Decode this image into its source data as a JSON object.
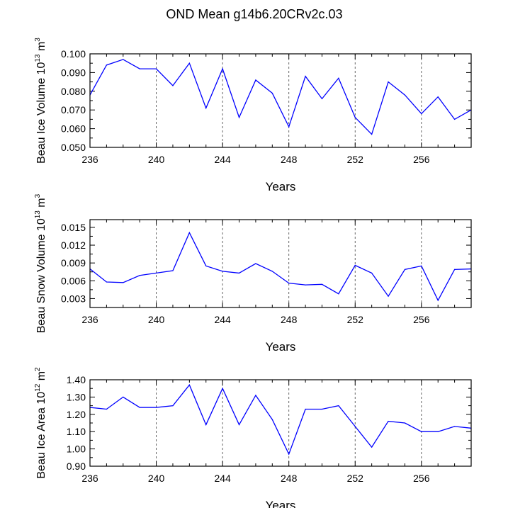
{
  "title": "OND Mean g14b6.20CRv2c.03",
  "chart_data": [
    {
      "type": "line",
      "ylabel": {
        "prefix": "Beau Ice Volume 10",
        "exp": "13",
        "mid": " m",
        "exp2": "3"
      },
      "xlabel": "Years",
      "xlim": [
        236,
        259
      ],
      "ylim": [
        0.05,
        0.1
      ],
      "xticks": [
        "236",
        "240",
        "244",
        "248",
        "252",
        "256"
      ],
      "yticks": [
        "0.050",
        "0.060",
        "0.070",
        "0.080",
        "0.090",
        "0.100"
      ],
      "grid": "dashed vertical lines at x = 240, 244, 248, 252, 256",
      "series": [
        {
          "color": "#0000ff",
          "x": [
            236,
            237,
            238,
            239,
            240,
            241,
            242,
            243,
            244,
            245,
            246,
            247,
            248,
            249,
            250,
            251,
            252,
            253,
            254,
            255,
            256,
            257,
            258,
            259
          ],
          "y": [
            0.078,
            0.094,
            0.097,
            0.092,
            0.092,
            0.083,
            0.095,
            0.071,
            0.092,
            0.066,
            0.086,
            0.079,
            0.061,
            0.088,
            0.076,
            0.087,
            0.066,
            0.057,
            0.085,
            0.078,
            0.068,
            0.077,
            0.065,
            0.07
          ]
        }
      ]
    },
    {
      "type": "line",
      "ylabel": {
        "prefix": "Beau Snow Volume 10",
        "exp": "13",
        "mid": " m",
        "exp2": "3"
      },
      "xlabel": "Years",
      "xlim": [
        236,
        259
      ],
      "ylim": [
        0.0015,
        0.0163
      ],
      "xticks": [
        "236",
        "240",
        "244",
        "248",
        "252",
        "256"
      ],
      "yticks": [
        "0.003",
        "0.006",
        "0.009",
        "0.012",
        "0.015"
      ],
      "grid": "dashed vertical lines at x = 240, 244, 248, 252, 256",
      "series": [
        {
          "color": "#0000ff",
          "x": [
            236,
            237,
            238,
            239,
            240,
            241,
            242,
            243,
            244,
            245,
            246,
            247,
            248,
            249,
            250,
            251,
            252,
            253,
            254,
            255,
            256,
            257,
            258,
            259
          ],
          "y": [
            0.008,
            0.0058,
            0.0057,
            0.0069,
            0.0073,
            0.0077,
            0.0141,
            0.0085,
            0.0076,
            0.0073,
            0.0089,
            0.0076,
            0.0056,
            0.0053,
            0.0054,
            0.0038,
            0.0086,
            0.0073,
            0.0034,
            0.0079,
            0.0085,
            0.0027,
            0.0079,
            0.008
          ]
        }
      ]
    },
    {
      "type": "line",
      "ylabel": {
        "prefix": "Beau Ice Area 10",
        "exp": "12",
        "mid": " m",
        "exp2": "2"
      },
      "xlabel": "Years",
      "xlim": [
        236,
        259
      ],
      "ylim": [
        0.9,
        1.4
      ],
      "xticks": [
        "236",
        "240",
        "244",
        "248",
        "252",
        "256"
      ],
      "yticks": [
        "0.90",
        "1.00",
        "1.10",
        "1.20",
        "1.30",
        "1.40"
      ],
      "grid": "dashed vertical lines at x = 240, 244, 248, 252, 256",
      "series": [
        {
          "color": "#0000ff",
          "x": [
            236,
            237,
            238,
            239,
            240,
            241,
            242,
            243,
            244,
            245,
            246,
            247,
            248,
            249,
            250,
            251,
            252,
            253,
            254,
            255,
            256,
            257,
            258,
            259
          ],
          "y": [
            1.24,
            1.23,
            1.3,
            1.24,
            1.24,
            1.25,
            1.37,
            1.14,
            1.35,
            1.14,
            1.31,
            1.17,
            0.97,
            1.23,
            1.23,
            1.25,
            1.13,
            1.01,
            1.16,
            1.15,
            1.1,
            1.1,
            1.13,
            1.12
          ]
        }
      ]
    }
  ]
}
